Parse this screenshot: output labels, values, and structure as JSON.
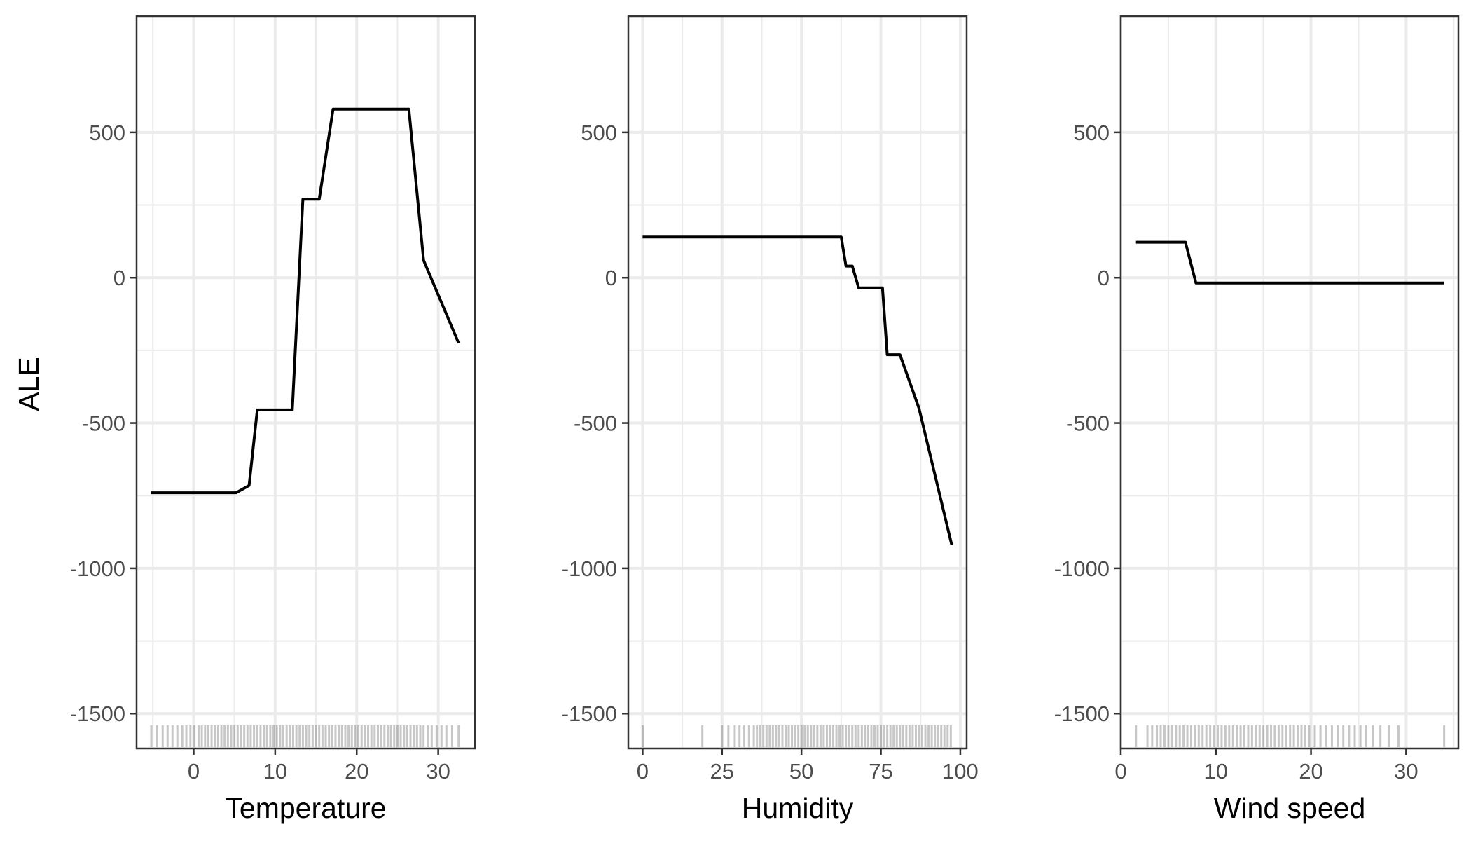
{
  "chart_data": {
    "type": "line",
    "ylabel": "ALE",
    "ylim": [
      -1620,
      900
    ],
    "yticks": [
      -1500,
      -1000,
      -500,
      0,
      500
    ],
    "colors": {
      "line": "#000000",
      "grid": "#ebebeb",
      "panel_border": "#333333",
      "rug": "#000000"
    },
    "panels": [
      {
        "xlabel": "Temperature",
        "xlim": [
          -7,
          34.5
        ],
        "xticks": [
          0,
          10,
          20,
          30
        ],
        "series": [
          {
            "x": [
              -5.2,
              5.2,
              6.8,
              7.8,
              12.1,
              13.4,
              15.4,
              17.1,
              26.4,
              28.2,
              32.5
            ],
            "y": [
              -740,
              -740,
              -715,
              -455,
              -455,
              270,
              270,
              580,
              580,
              60,
              -225
            ]
          }
        ],
        "rug": [
          -5.2,
          -4.5,
          -3.8,
          -3.2,
          -2.6,
          -2,
          -1.4,
          -0.9,
          -0.4,
          0.1,
          0.6,
          1,
          1.4,
          1.8,
          2.2,
          2.6,
          3,
          3.4,
          3.8,
          4.2,
          4.6,
          5,
          5.4,
          5.8,
          6.2,
          6.6,
          7,
          7.4,
          7.8,
          8.2,
          8.6,
          9,
          9.4,
          9.8,
          10.2,
          10.6,
          11,
          11.4,
          11.8,
          12.2,
          12.6,
          13,
          13.4,
          13.8,
          14.2,
          14.6,
          15,
          15.4,
          15.8,
          16.2,
          16.6,
          17,
          17.4,
          17.8,
          18.2,
          18.6,
          19,
          19.4,
          19.8,
          20.2,
          20.6,
          21,
          21.4,
          21.8,
          22.2,
          22.6,
          23,
          23.4,
          23.8,
          24.2,
          24.6,
          25,
          25.4,
          25.8,
          26.2,
          26.6,
          27,
          27.4,
          27.8,
          28.2,
          28.7,
          29.2,
          29.8,
          30.4,
          31,
          31.7,
          32.5
        ]
      },
      {
        "xlabel": "Humidity",
        "xlim": [
          -4.5,
          102
        ],
        "xticks": [
          0,
          25,
          50,
          75,
          100
        ],
        "series": [
          {
            "x": [
              0,
              62.5,
              64,
              66,
              68,
              72,
              75.5,
              77,
              81,
              87,
              97.3
            ],
            "y": [
              140,
              140,
              40,
              40,
              -35,
              -35,
              -35,
              -265,
              -265,
              -450,
              -920
            ]
          }
        ],
        "rug": [
          0,
          18.8,
          25,
          27,
          29,
          30.5,
          32,
          33.5,
          35,
          36,
          37,
          38,
          39,
          40,
          41,
          42,
          43,
          44,
          45,
          46,
          47,
          48,
          49,
          50,
          51,
          52,
          53,
          54,
          55,
          56,
          57,
          58,
          59,
          60,
          61,
          62,
          63,
          64,
          65,
          66,
          67,
          68,
          69,
          70,
          71,
          72,
          73,
          74,
          75,
          76,
          77,
          78,
          79,
          80,
          81,
          82,
          83,
          84,
          85,
          86,
          87,
          88,
          89,
          90,
          91,
          92,
          93,
          94,
          95,
          96,
          97
        ]
      },
      {
        "xlabel": "Wind speed",
        "xlim": [
          0,
          35.5
        ],
        "xticks": [
          0,
          10,
          20,
          30
        ],
        "series": [
          {
            "x": [
              1.6,
              6.8,
              7.9,
              34
            ],
            "y": [
              122,
              122,
              -18,
              -18
            ]
          }
        ],
        "rug": [
          1.6,
          2.8,
          3.3,
          3.8,
          4.2,
          4.6,
          5,
          5.4,
          5.8,
          6.2,
          6.6,
          7,
          7.4,
          7.8,
          8.2,
          8.6,
          9,
          9.4,
          9.8,
          10.2,
          10.6,
          11,
          11.4,
          11.8,
          12.2,
          12.6,
          13,
          13.4,
          13.8,
          14.2,
          14.6,
          15,
          15.4,
          15.8,
          16.2,
          16.6,
          17,
          17.4,
          17.8,
          18.2,
          18.6,
          19,
          19.4,
          19.8,
          20.4,
          21,
          21.6,
          22.2,
          22.8,
          23.4,
          24,
          24.6,
          25.2,
          25.8,
          26.5,
          27.3,
          28.2,
          29.2,
          34
        ]
      }
    ]
  }
}
